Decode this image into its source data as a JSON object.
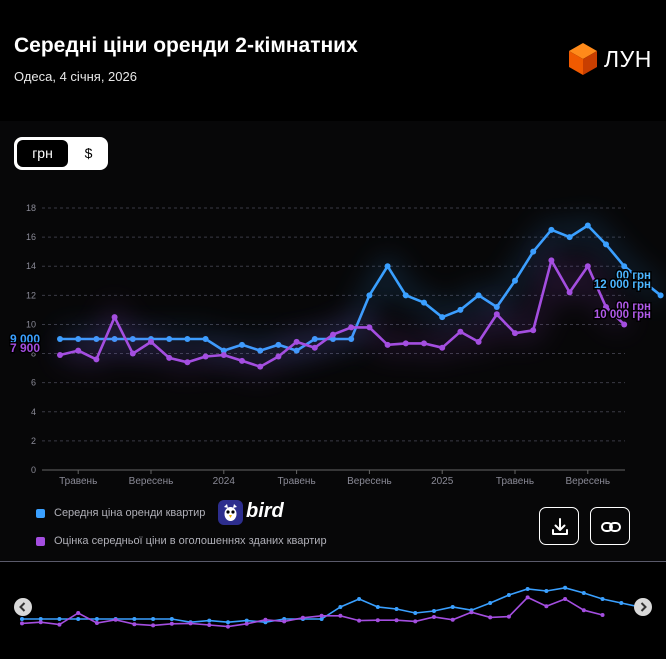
{
  "header": {
    "title": "Середні ціни оренди 2-кімнатних",
    "subtitle": "Одеса, 4 січня, 2026",
    "logo_text": "ЛУН"
  },
  "currency_toggle": {
    "options": [
      "грн",
      "$"
    ],
    "selected": "грн"
  },
  "colors": {
    "blue": "#3aa0ff",
    "purple": "#a44ee0",
    "background": "#000000"
  },
  "chart_data": {
    "type": "line",
    "y_ticks": [
      "18",
      "16",
      "14",
      "12",
      "10",
      "8",
      "6",
      "4",
      "2",
      "0"
    ],
    "ylim": [
      0,
      18
    ],
    "x_tick_labels": [
      "Травень",
      "Вересень",
      "2024",
      "Травень",
      "Вересень",
      "2025",
      "Травень",
      "Вересень"
    ],
    "x_tick_index": [
      1,
      5,
      9,
      13,
      17,
      21,
      25,
      29
    ],
    "grid": "horizontal dashed",
    "units": "тис. грн",
    "series": [
      {
        "name": "Середня ціна оренди квартир",
        "color": "#3aa0ff",
        "values": [
          9.0,
          9.0,
          9.0,
          9.0,
          9.0,
          9.0,
          9.0,
          9.0,
          9.0,
          8.2,
          8.6,
          8.2,
          8.6,
          8.2,
          9.0,
          9.0,
          9.0,
          12.0,
          14.0,
          12.0,
          11.5,
          10.5,
          11.0,
          12.0,
          11.2,
          13.0,
          15.0,
          16.5,
          16.0,
          16.8,
          15.5,
          14.0,
          13.0,
          12.0
        ]
      },
      {
        "name": "Оцінка середньої ціни в оголошеннях зданих квартир",
        "color": "#a44ee0",
        "values": [
          7.9,
          8.2,
          7.6,
          10.5,
          8.0,
          8.8,
          7.7,
          7.4,
          7.8,
          7.9,
          7.5,
          7.1,
          7.8,
          8.8,
          8.4,
          9.3,
          9.8,
          9.8,
          8.6,
          8.7,
          8.7,
          8.4,
          9.5,
          8.8,
          10.7,
          9.4,
          9.6,
          14.4,
          12.2,
          14.0,
          11.2,
          10.0
        ]
      }
    ],
    "start_labels": {
      "blue": "9 000",
      "purple": "7 900"
    },
    "end_labels": {
      "blue": "12 000 грн",
      "purple": "10 000 грн",
      "blue_partial": "00 грн",
      "purple_partial": "00 грн"
    }
  },
  "legend": {
    "items": [
      {
        "label": "Середня ціна оренди квартир",
        "color": "#3aa0ff"
      },
      {
        "label": "Оцінка середньої ціни в оголошеннях зданих квартир",
        "color": "#a44ee0"
      }
    ]
  },
  "branding": {
    "bird_text": "bird"
  },
  "actions": {
    "download": "download-icon",
    "link": "link-icon"
  }
}
